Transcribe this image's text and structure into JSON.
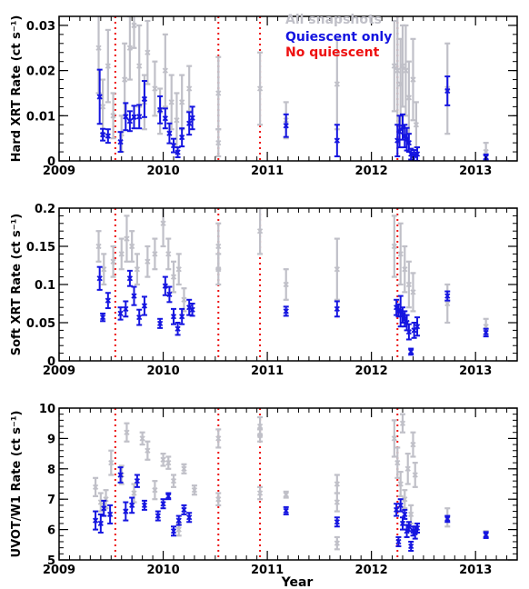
{
  "chart_data": [
    {
      "type": "scatter",
      "ylabel": "Hard XRT Rate (ct s⁻¹)",
      "xlim": [
        2009,
        2013.4
      ],
      "ylim": [
        0,
        0.032
      ],
      "yticks": [
        "0",
        "0.01",
        "0.02",
        "0.03"
      ],
      "ytick_values": [
        0,
        0.01,
        0.02,
        0.03
      ],
      "xticks": [
        "2009",
        "2010",
        "2011",
        "2012",
        "2013"
      ],
      "legend": [
        {
          "label": "All snapshots",
          "color": "#c0c0c8"
        },
        {
          "label": "Quiescent only",
          "color": "#1515e0"
        },
        {
          "label": "No quiescent",
          "color": "#ee1111"
        }
      ],
      "vlines": [
        2009.54,
        2010.53,
        2010.93,
        2012.25
      ],
      "series": [
        {
          "name": "All snapshots",
          "color": "#c0c0c8",
          "points": [
            [
              2009.38,
              0.025,
              0.01
            ],
            [
              2009.42,
              0.012,
              0.006
            ],
            [
              2009.47,
              0.021,
              0.008
            ],
            [
              2009.52,
              0.01,
              0.005
            ],
            [
              2009.6,
              0.006,
              0.004
            ],
            [
              2009.63,
              0.018,
              0.008
            ],
            [
              2009.68,
              0.025,
              0.007
            ],
            [
              2009.72,
              0.03,
              0.005
            ],
            [
              2009.77,
              0.021,
              0.009
            ],
            [
              2009.82,
              0.013,
              0.006
            ],
            [
              2009.85,
              0.024,
              0.007
            ],
            [
              2009.92,
              0.016,
              0.006
            ],
            [
              2009.97,
              0.011,
              0.005
            ],
            [
              2010.02,
              0.02,
              0.008
            ],
            [
              2010.08,
              0.013,
              0.006
            ],
            [
              2010.13,
              0.009,
              0.006
            ],
            [
              2010.18,
              0.013,
              0.006
            ],
            [
              2010.25,
              0.016,
              0.005
            ],
            [
              2010.53,
              0.015,
              0.008
            ],
            [
              2010.53,
              0.004,
              0.003
            ],
            [
              2010.93,
              0.016,
              0.008
            ],
            [
              2011.18,
              0.009,
              0.004
            ],
            [
              2011.67,
              0.017,
              0.01
            ],
            [
              2012.22,
              0.021,
              0.01
            ],
            [
              2012.25,
              0.02,
              0.012
            ],
            [
              2012.28,
              0.017,
              0.01
            ],
            [
              2012.3,
              0.021,
              0.009
            ],
            [
              2012.33,
              0.02,
              0.01
            ],
            [
              2012.36,
              0.014,
              0.008
            ],
            [
              2012.4,
              0.018,
              0.009
            ],
            [
              2012.43,
              0.008,
              0.005
            ],
            [
              2012.73,
              0.016,
              0.01
            ],
            [
              2013.1,
              0.002,
              0.002
            ]
          ]
        },
        {
          "name": "Quiescent only",
          "color": "#1515e0",
          "points": [
            [
              2009.39,
              0.0142,
              0.006
            ],
            [
              2009.42,
              0.0058,
              0.0013
            ],
            [
              2009.47,
              0.0055,
              0.0015
            ],
            [
              2009.59,
              0.0042,
              0.0022
            ],
            [
              2009.64,
              0.0098,
              0.003
            ],
            [
              2009.68,
              0.0088,
              0.0022
            ],
            [
              2009.72,
              0.0097,
              0.0025
            ],
            [
              2009.77,
              0.0098,
              0.0026
            ],
            [
              2009.82,
              0.0137,
              0.004
            ],
            [
              2009.97,
              0.0113,
              0.003
            ],
            [
              2010.02,
              0.0094,
              0.0022
            ],
            [
              2010.06,
              0.0061,
              0.0022
            ],
            [
              2010.1,
              0.0034,
              0.0015
            ],
            [
              2010.14,
              0.0019,
              0.0011
            ],
            [
              2010.18,
              0.0052,
              0.002
            ],
            [
              2010.25,
              0.0083,
              0.0025
            ],
            [
              2010.28,
              0.0095,
              0.0025
            ],
            [
              2011.18,
              0.0078,
              0.0025
            ],
            [
              2011.67,
              0.0045,
              0.0035
            ],
            [
              2012.25,
              0.0045,
              0.0035
            ],
            [
              2012.27,
              0.0065,
              0.0035
            ],
            [
              2012.3,
              0.0075,
              0.0028
            ],
            [
              2012.32,
              0.0055,
              0.0025
            ],
            [
              2012.34,
              0.0048,
              0.0025
            ],
            [
              2012.36,
              0.004,
              0.002
            ],
            [
              2012.38,
              0.0015,
              0.0012
            ],
            [
              2012.41,
              0.0012,
              0.0012
            ],
            [
              2012.44,
              0.0015,
              0.0015
            ],
            [
              2012.73,
              0.0155,
              0.0032
            ],
            [
              2013.1,
              0.0008,
              0.0006
            ]
          ]
        }
      ]
    },
    {
      "type": "scatter",
      "ylabel": "Soft XRT Rate (ct s⁻¹)",
      "xlim": [
        2009,
        2013.4
      ],
      "ylim": [
        0,
        0.2
      ],
      "yticks": [
        "0",
        "0.05",
        "0.1",
        "0.15",
        "0.2"
      ],
      "ytick_values": [
        0,
        0.05,
        0.1,
        0.15,
        0.2
      ],
      "xticks": [
        "2009",
        "2010",
        "2011",
        "2012",
        "2013"
      ],
      "vlines": [
        2009.54,
        2010.53,
        2010.93,
        2012.25
      ],
      "series": [
        {
          "name": "All snapshots",
          "color": "#c0c0c8",
          "points": [
            [
              2009.38,
              0.15,
              0.02
            ],
            [
              2009.43,
              0.12,
              0.02
            ],
            [
              2009.52,
              0.13,
              0.02
            ],
            [
              2009.6,
              0.14,
              0.02
            ],
            [
              2009.65,
              0.16,
              0.03
            ],
            [
              2009.7,
              0.15,
              0.02
            ],
            [
              2009.75,
              0.12,
              0.02
            ],
            [
              2009.85,
              0.13,
              0.02
            ],
            [
              2009.92,
              0.14,
              0.02
            ],
            [
              2010.0,
              0.18,
              0.03
            ],
            [
              2010.05,
              0.14,
              0.02
            ],
            [
              2010.1,
              0.11,
              0.02
            ],
            [
              2010.15,
              0.12,
              0.02
            ],
            [
              2010.2,
              0.08,
              0.015
            ],
            [
              2010.53,
              0.15,
              0.03
            ],
            [
              2010.53,
              0.12,
              0.02
            ],
            [
              2010.93,
              0.17,
              0.03
            ],
            [
              2011.18,
              0.1,
              0.02
            ],
            [
              2011.67,
              0.12,
              0.04
            ],
            [
              2012.22,
              0.15,
              0.04
            ],
            [
              2012.28,
              0.14,
              0.04
            ],
            [
              2012.32,
              0.12,
              0.03
            ],
            [
              2012.36,
              0.1,
              0.03
            ],
            [
              2012.4,
              0.09,
              0.025
            ],
            [
              2012.73,
              0.075,
              0.025
            ],
            [
              2013.1,
              0.045,
              0.01
            ]
          ]
        },
        {
          "name": "Quiescent only",
          "color": "#1515e0",
          "points": [
            [
              2009.39,
              0.108,
              0.015
            ],
            [
              2009.42,
              0.057,
              0.005
            ],
            [
              2009.47,
              0.079,
              0.01
            ],
            [
              2009.59,
              0.062,
              0.008
            ],
            [
              2009.64,
              0.068,
              0.01
            ],
            [
              2009.68,
              0.108,
              0.01
            ],
            [
              2009.72,
              0.085,
              0.012
            ],
            [
              2009.77,
              0.057,
              0.01
            ],
            [
              2009.82,
              0.072,
              0.012
            ],
            [
              2009.97,
              0.049,
              0.006
            ],
            [
              2010.02,
              0.098,
              0.012
            ],
            [
              2010.06,
              0.087,
              0.01
            ],
            [
              2010.1,
              0.058,
              0.01
            ],
            [
              2010.14,
              0.042,
              0.008
            ],
            [
              2010.18,
              0.058,
              0.01
            ],
            [
              2010.25,
              0.07,
              0.01
            ],
            [
              2010.28,
              0.067,
              0.008
            ],
            [
              2011.18,
              0.065,
              0.006
            ],
            [
              2011.67,
              0.068,
              0.01
            ],
            [
              2012.24,
              0.07,
              0.01
            ],
            [
              2012.26,
              0.066,
              0.008
            ],
            [
              2012.28,
              0.065,
              0.02
            ],
            [
              2012.3,
              0.06,
              0.01
            ],
            [
              2012.32,
              0.055,
              0.01
            ],
            [
              2012.34,
              0.05,
              0.01
            ],
            [
              2012.36,
              0.038,
              0.01
            ],
            [
              2012.38,
              0.012,
              0.004
            ],
            [
              2012.41,
              0.04,
              0.01
            ],
            [
              2012.44,
              0.045,
              0.012
            ],
            [
              2012.73,
              0.085,
              0.006
            ],
            [
              2013.1,
              0.037,
              0.005
            ]
          ]
        }
      ]
    },
    {
      "type": "scatter",
      "ylabel": "UVOT/W1 Rate (ct s⁻¹)",
      "xlabel": "Year",
      "xlim": [
        2009,
        2013.4
      ],
      "ylim": [
        5,
        10
      ],
      "yticks": [
        "5",
        "6",
        "7",
        "8",
        "9",
        "10"
      ],
      "ytick_values": [
        5,
        6,
        7,
        8,
        9,
        10
      ],
      "xticks": [
        "2009",
        "2010",
        "2011",
        "2012",
        "2013"
      ],
      "vlines": [
        2009.54,
        2010.53,
        2010.93,
        2012.25
      ],
      "series": [
        {
          "name": "All snapshots",
          "color": "#c0c0c8",
          "points": [
            [
              2009.35,
              7.4,
              0.3
            ],
            [
              2009.4,
              6.9,
              0.3
            ],
            [
              2009.45,
              7.0,
              0.3
            ],
            [
              2009.5,
              8.2,
              0.4
            ],
            [
              2009.6,
              7.8,
              0.3
            ],
            [
              2009.65,
              9.2,
              0.3
            ],
            [
              2009.72,
              7.2,
              0.3
            ],
            [
              2009.8,
              9.0,
              0.2
            ],
            [
              2009.85,
              8.6,
              0.3
            ],
            [
              2009.92,
              7.3,
              0.3
            ],
            [
              2010.0,
              8.3,
              0.2
            ],
            [
              2010.05,
              8.2,
              0.2
            ],
            [
              2010.1,
              7.6,
              0.2
            ],
            [
              2010.15,
              6.0,
              0.2
            ],
            [
              2010.2,
              8.0,
              0.15
            ],
            [
              2010.3,
              7.3,
              0.15
            ],
            [
              2010.53,
              9.0,
              0.3
            ],
            [
              2010.53,
              7.0,
              0.2
            ],
            [
              2010.93,
              9.4,
              0.3
            ],
            [
              2010.93,
              9.1,
              0.2
            ],
            [
              2010.93,
              7.2,
              0.2
            ],
            [
              2011.18,
              7.15,
              0.1
            ],
            [
              2011.67,
              7.5,
              0.3
            ],
            [
              2011.67,
              5.55,
              0.2
            ],
            [
              2011.67,
              6.9,
              0.3
            ],
            [
              2012.22,
              9.0,
              0.6
            ],
            [
              2012.25,
              8.2,
              0.5
            ],
            [
              2012.28,
              7.5,
              0.4
            ],
            [
              2012.3,
              9.5,
              0.3
            ],
            [
              2012.32,
              7.0,
              0.3
            ],
            [
              2012.35,
              8.0,
              0.5
            ],
            [
              2012.38,
              6.5,
              0.3
            ],
            [
              2012.4,
              8.8,
              0.4
            ],
            [
              2012.42,
              7.8,
              0.4
            ],
            [
              2012.73,
              6.4,
              0.3
            ],
            [
              2013.1,
              5.85,
              0.1
            ]
          ]
        },
        {
          "name": "Quiescent only",
          "color": "#1515e0",
          "points": [
            [
              2009.35,
              6.3,
              0.3
            ],
            [
              2009.4,
              6.2,
              0.3
            ],
            [
              2009.43,
              6.7,
              0.25
            ],
            [
              2009.49,
              6.5,
              0.3
            ],
            [
              2009.59,
              7.8,
              0.25
            ],
            [
              2009.64,
              6.6,
              0.3
            ],
            [
              2009.7,
              6.8,
              0.25
            ],
            [
              2009.75,
              7.6,
              0.2
            ],
            [
              2009.82,
              6.8,
              0.15
            ],
            [
              2009.95,
              6.45,
              0.15
            ],
            [
              2010.0,
              6.85,
              0.15
            ],
            [
              2010.05,
              7.1,
              0.1
            ],
            [
              2010.1,
              5.95,
              0.15
            ],
            [
              2010.15,
              6.3,
              0.15
            ],
            [
              2010.2,
              6.65,
              0.15
            ],
            [
              2010.25,
              6.4,
              0.15
            ],
            [
              2011.18,
              6.62,
              0.12
            ],
            [
              2011.67,
              6.25,
              0.15
            ],
            [
              2012.24,
              6.65,
              0.2
            ],
            [
              2012.26,
              5.6,
              0.15
            ],
            [
              2012.28,
              6.8,
              0.2
            ],
            [
              2012.3,
              6.2,
              0.2
            ],
            [
              2012.32,
              6.5,
              0.15
            ],
            [
              2012.34,
              5.95,
              0.2
            ],
            [
              2012.36,
              6.1,
              0.15
            ],
            [
              2012.38,
              5.45,
              0.15
            ],
            [
              2012.4,
              5.95,
              0.15
            ],
            [
              2012.42,
              5.9,
              0.2
            ],
            [
              2012.44,
              6.05,
              0.15
            ],
            [
              2012.73,
              6.35,
              0.1
            ],
            [
              2013.1,
              5.82,
              0.1
            ]
          ]
        }
      ]
    }
  ]
}
